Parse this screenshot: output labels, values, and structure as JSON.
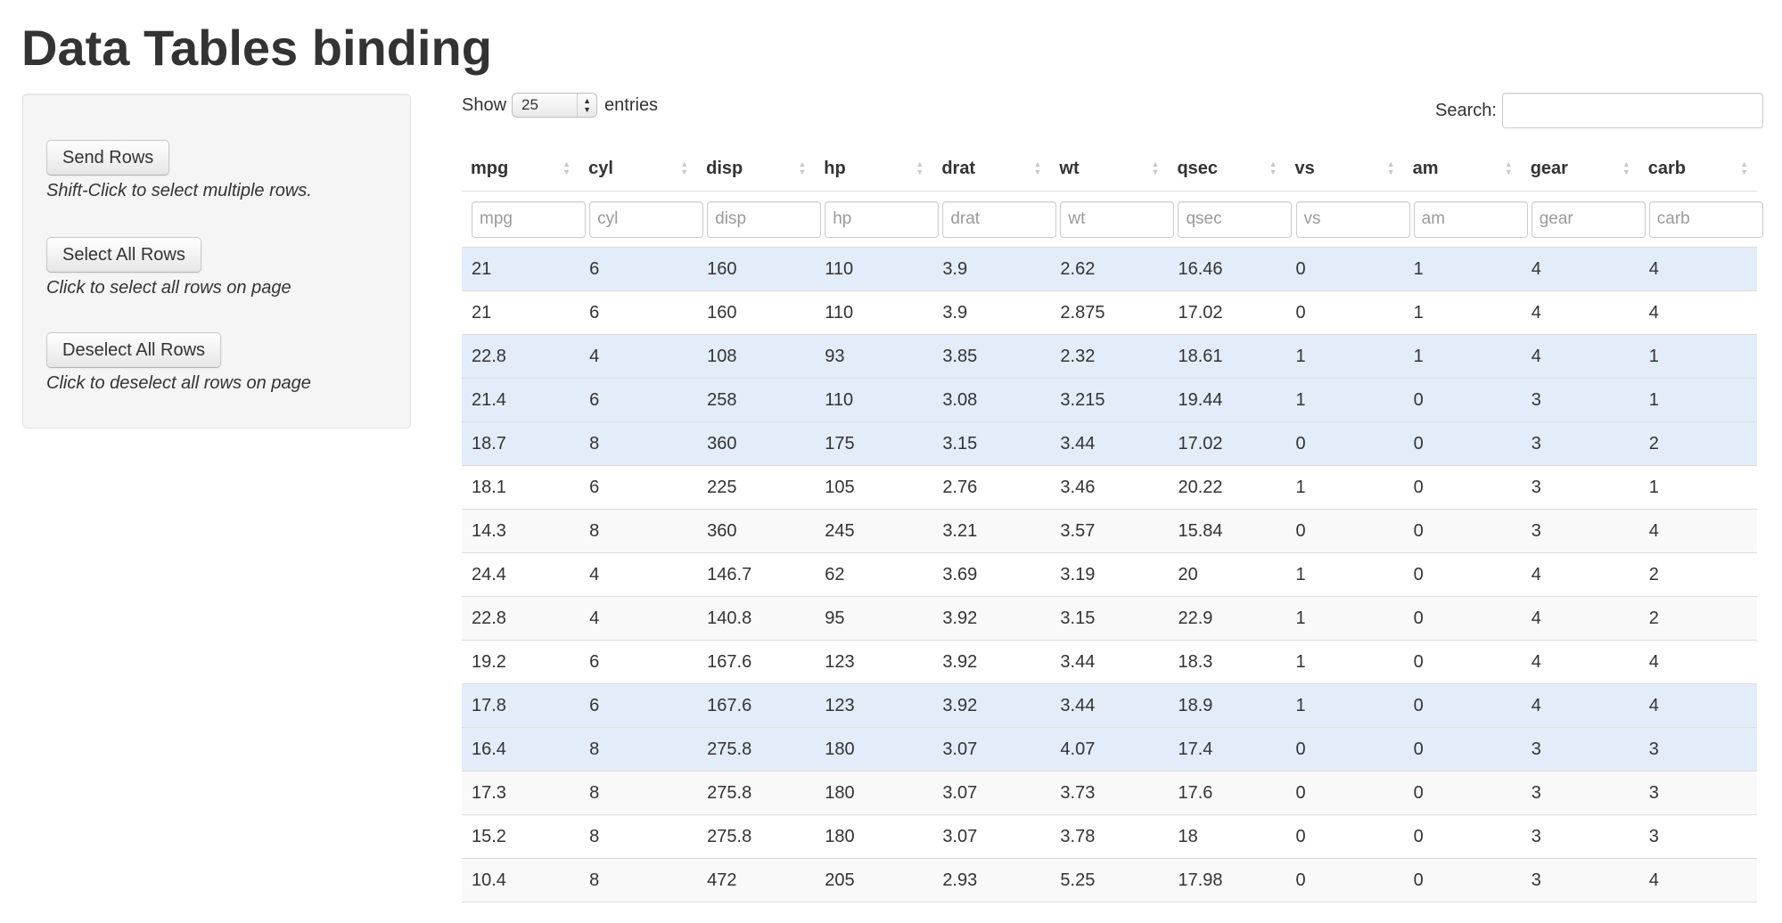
{
  "title": "Data Tables binding",
  "sidebar": {
    "send_rows": {
      "label": "Send Rows",
      "hint": "Shift-Click to select multiple rows."
    },
    "select_all": {
      "label": "Select All Rows",
      "hint": "Click to select all rows on page"
    },
    "deselect_all": {
      "label": "Deselect All Rows",
      "hint": "Click to deselect all rows on page"
    }
  },
  "table_controls": {
    "show_label": "Show",
    "page_length": "25",
    "entries_label": "entries",
    "search_label": "Search:",
    "search_value": ""
  },
  "colors": {
    "selected_row": "#e3ecf9",
    "odd_row": "#f9f9f9",
    "panel_bg": "#f5f5f5"
  },
  "icons": {
    "sort": "sort-both-icon",
    "select_arrows": "select-arrows-icon"
  },
  "columns": [
    "mpg",
    "cyl",
    "disp",
    "hp",
    "drat",
    "wt",
    "qsec",
    "vs",
    "am",
    "gear",
    "carb"
  ],
  "filter_placeholders": [
    "mpg",
    "cyl",
    "disp",
    "hp",
    "drat",
    "wt",
    "qsec",
    "vs",
    "am",
    "gear",
    "carb"
  ],
  "rows": [
    {
      "selected": true,
      "cells": [
        "21",
        "6",
        "160",
        "110",
        "3.9",
        "2.62",
        "16.46",
        "0",
        "1",
        "4",
        "4"
      ]
    },
    {
      "selected": false,
      "cells": [
        "21",
        "6",
        "160",
        "110",
        "3.9",
        "2.875",
        "17.02",
        "0",
        "1",
        "4",
        "4"
      ]
    },
    {
      "selected": true,
      "cells": [
        "22.8",
        "4",
        "108",
        "93",
        "3.85",
        "2.32",
        "18.61",
        "1",
        "1",
        "4",
        "1"
      ]
    },
    {
      "selected": true,
      "cells": [
        "21.4",
        "6",
        "258",
        "110",
        "3.08",
        "3.215",
        "19.44",
        "1",
        "0",
        "3",
        "1"
      ]
    },
    {
      "selected": true,
      "cells": [
        "18.7",
        "8",
        "360",
        "175",
        "3.15",
        "3.44",
        "17.02",
        "0",
        "0",
        "3",
        "2"
      ]
    },
    {
      "selected": false,
      "cells": [
        "18.1",
        "6",
        "225",
        "105",
        "2.76",
        "3.46",
        "20.22",
        "1",
        "0",
        "3",
        "1"
      ]
    },
    {
      "selected": false,
      "cells": [
        "14.3",
        "8",
        "360",
        "245",
        "3.21",
        "3.57",
        "15.84",
        "0",
        "0",
        "3",
        "4"
      ]
    },
    {
      "selected": false,
      "cells": [
        "24.4",
        "4",
        "146.7",
        "62",
        "3.69",
        "3.19",
        "20",
        "1",
        "0",
        "4",
        "2"
      ]
    },
    {
      "selected": false,
      "cells": [
        "22.8",
        "4",
        "140.8",
        "95",
        "3.92",
        "3.15",
        "22.9",
        "1",
        "0",
        "4",
        "2"
      ]
    },
    {
      "selected": false,
      "cells": [
        "19.2",
        "6",
        "167.6",
        "123",
        "3.92",
        "3.44",
        "18.3",
        "1",
        "0",
        "4",
        "4"
      ]
    },
    {
      "selected": true,
      "cells": [
        "17.8",
        "6",
        "167.6",
        "123",
        "3.92",
        "3.44",
        "18.9",
        "1",
        "0",
        "4",
        "4"
      ]
    },
    {
      "selected": true,
      "cells": [
        "16.4",
        "8",
        "275.8",
        "180",
        "3.07",
        "4.07",
        "17.4",
        "0",
        "0",
        "3",
        "3"
      ]
    },
    {
      "selected": false,
      "cells": [
        "17.3",
        "8",
        "275.8",
        "180",
        "3.07",
        "3.73",
        "17.6",
        "0",
        "0",
        "3",
        "3"
      ]
    },
    {
      "selected": false,
      "cells": [
        "15.2",
        "8",
        "275.8",
        "180",
        "3.07",
        "3.78",
        "18",
        "0",
        "0",
        "3",
        "3"
      ]
    },
    {
      "selected": false,
      "cells": [
        "10.4",
        "8",
        "472",
        "205",
        "2.93",
        "5.25",
        "17.98",
        "0",
        "0",
        "3",
        "4"
      ]
    }
  ]
}
